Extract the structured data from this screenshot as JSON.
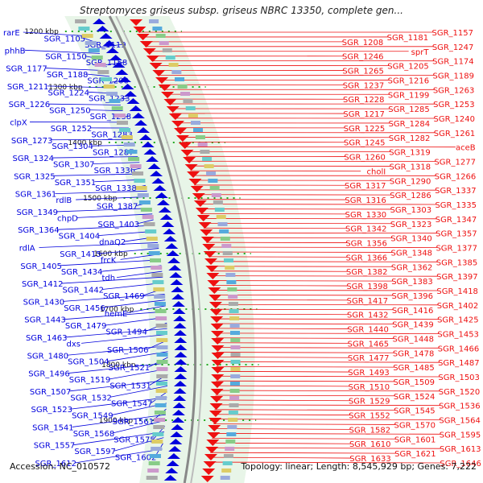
{
  "title": "Streptomyces griseus subsp. griseus NBRC 13350, complete gen...",
  "footer": {
    "accession": "Accession: NC_010572",
    "summary": "Topology: linear; Length: 8,545,929 bp; Genes: 7,222"
  },
  "colors": {
    "minus_strand": "#0000dd",
    "plus_strand": "#ee1111",
    "backbone": "#888888",
    "tick_marker": "#22aa22",
    "band_fill": "#e8f5e8"
  },
  "scale_ticks": [
    "1200 kbp",
    "1300 kbp",
    "1400 kbp",
    "1500 kbp",
    "1600 kbp",
    "1700 kbp",
    "1800 kbp",
    "1900 kbp"
  ],
  "left_labels": [
    "rarE",
    "SGR_1105",
    "SGR_1119",
    "phhB",
    "SGR_1150",
    "SGR_1158",
    "SGR_1177",
    "SGR_1188",
    "SGR_1200",
    "SGR_1211",
    "SGR_1224",
    "SGR_1233",
    "SGR_1226",
    "SGR_1250",
    "SGR_1238",
    "clpX",
    "SGR_1252",
    "SGR_1283",
    "SGR_1273",
    "SGR_1304",
    "SGR_1287",
    "SGR_1324",
    "SGR_1307",
    "SGR_1336",
    "SGR_1325",
    "SGR_1351",
    "SGR_1338",
    "SGR_1361",
    "rdlB",
    "SGR_1387",
    "SGR_1349",
    "chpD",
    "SGR_1403",
    "SGR_1364",
    "SGR_1404",
    "dnaQ2",
    "rdlA",
    "SGR_1415",
    "frcK",
    "SGR_1405",
    "SGR_1434",
    "tdh",
    "SGR_1412",
    "SGR_1442",
    "SGR_1469",
    "SGR_1430",
    "SGR_1456",
    "hemE",
    "SGR_1443",
    "SGR_1479",
    "SGR_1494",
    "SGR_1463",
    "dxs",
    "SGR_1506",
    "SGR_1480",
    "SGR_1504",
    "SGR_1521",
    "SGR_1496",
    "SGR_1519",
    "SGR_1531",
    "SGR_1507",
    "SGR_1532",
    "SGR_1547",
    "SGR_1523",
    "SGR_1549",
    "SGR_1561",
    "SGR_1541",
    "SGR_1568",
    "SGR_1575",
    "SGR_1557",
    "SGR_1597",
    "SGR_1602",
    "SGR_1612"
  ],
  "right_labels": [
    "SGR_1157",
    "SGR_1181",
    "SGR_1208",
    "SGR_1247",
    "sprT",
    "SGR_1246",
    "SGR_1174",
    "SGR_1205",
    "SGR_1265",
    "SGR_1189",
    "SGR_1216",
    "SGR_1237",
    "SGR_1263",
    "SGR_1199",
    "SGR_1228",
    "SGR_1253",
    "SGR_1285",
    "SGR_1217",
    "SGR_1240",
    "SGR_1284",
    "SGR_1225",
    "SGR_1261",
    "SGR_1282",
    "SGR_1245",
    "aceB",
    "SGR_1319",
    "SGR_1260",
    "SGR_1277",
    "SGR_1318",
    "cholI",
    "SGR_1266",
    "SGR_1290",
    "SGR_1317",
    "SGR_1337",
    "SGR_1286",
    "SGR_1316",
    "SGR_1335",
    "SGR_1303",
    "SGR_1330",
    "SGR_1347",
    "SGR_1323",
    "SGR_1342",
    "SGR_1357",
    "SGR_1340",
    "SGR_1356",
    "SGR_1377",
    "SGR_1348",
    "SGR_1366",
    "SGR_1385",
    "SGR_1362",
    "SGR_1382",
    "SGR_1397",
    "SGR_1383",
    "SGR_1398",
    "SGR_1418",
    "SGR_1396",
    "SGR_1417",
    "SGR_1402",
    "SGR_1416",
    "SGR_1432",
    "SGR_1425",
    "SGR_1439",
    "SGR_1440",
    "SGR_1453",
    "SGR_1448",
    "SGR_1465",
    "SGR_1466",
    "SGR_1478",
    "SGR_1477",
    "SGR_1487",
    "SGR_1485",
    "SGR_1493",
    "SGR_1503",
    "SGR_1509",
    "SGR_1510",
    "SGR_1520",
    "SGR_1524",
    "SGR_1529",
    "SGR_1536",
    "SGR_1545",
    "SGR_1552",
    "SGR_1564",
    "SGR_1570",
    "SGR_1582",
    "SGR_1595",
    "SGR_1601",
    "SGR_1610",
    "SGR_1613",
    "SGR_1621",
    "SGR_1633",
    "SGR_1646"
  ]
}
